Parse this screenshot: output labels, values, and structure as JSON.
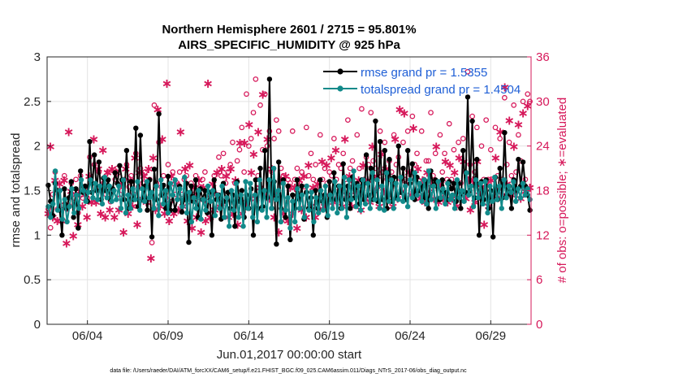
{
  "chart_data": {
    "type": "line",
    "title": "Northern Hemisphere 2601 / 2715 = 95.801%",
    "subtitle": "AIRS_SPECIFIC_HUMIDITY @ 925 hPa",
    "xlabel": "Jun.01,2017 00:00:00 start",
    "ylabel": "rmse and totalspread",
    "ylabel_right": "# of obs: o=possible; ∗=evaluated",
    "ylim": [
      0,
      3
    ],
    "ylim_right": [
      0,
      36
    ],
    "xlim": [
      1.5,
      31.5
    ],
    "yticks": [
      "0",
      "0.5",
      "1",
      "1.5",
      "2",
      "2.5",
      "3"
    ],
    "yticks_right": [
      "0",
      "6",
      "12",
      "18",
      "24",
      "30",
      "36"
    ],
    "xticks": [
      {
        "pos": 4,
        "label": "06/04"
      },
      {
        "pos": 9,
        "label": "06/09"
      },
      {
        "pos": 14,
        "label": "06/14"
      },
      {
        "pos": 19,
        "label": "06/19"
      },
      {
        "pos": 24,
        "label": "06/24"
      },
      {
        "pos": 29,
        "label": "06/29"
      }
    ],
    "grid": true,
    "legend_position": "top-right",
    "colors": {
      "rmse": "#000000",
      "spread": "#118a8a",
      "obs": "#d6185a",
      "legend_text": "#1f5fd6"
    },
    "series": [
      {
        "name": "rmse grand pr = 1.5355",
        "color": "#000000",
        "values": [
          1.56,
          1.38,
          1.22,
          1.58,
          1.5,
          1.28,
          1.0,
          1.52,
          1.3,
          1.42,
          1.6,
          1.2,
          1.52,
          1.08,
          1.72,
          1.48,
          1.55,
          1.38,
          2.05,
          1.48,
          1.9,
          1.5,
          1.82,
          1.4,
          1.64,
          1.5,
          1.62,
          1.4,
          1.52,
          1.7,
          1.58,
          1.78,
          1.62,
          1.4,
          1.95,
          1.3,
          1.6,
          1.4,
          2.2,
          1.32,
          2.12,
          1.4,
          1.55,
          1.28,
          1.62,
          0.98,
          1.74,
          1.4,
          2.36,
          1.45,
          1.56,
          1.3,
          1.66,
          1.28,
          1.45,
          1.28,
          1.4,
          1.55,
          1.26,
          1.4,
          1.58,
          0.92,
          1.55,
          1.38,
          1.62,
          1.2,
          1.52,
          1.4,
          1.5,
          1.25,
          1.48,
          1.0,
          1.62,
          1.4,
          1.45,
          1.18,
          1.58,
          1.38,
          1.48,
          1.3,
          1.45,
          1.1,
          1.6,
          1.38,
          1.5,
          1.2,
          1.45,
          1.3,
          1.52,
          1.0,
          1.62,
          1.3,
          1.75,
          1.32,
          1.95,
          1.42,
          2.75,
          1.3,
          1.6,
          0.9,
          1.82,
          1.3,
          1.62,
          1.2,
          1.55,
          0.95,
          1.45,
          1.3,
          1.62,
          1.4,
          1.55,
          1.18,
          1.48,
          1.3,
          1.42,
          1.0,
          1.5,
          1.3,
          1.62,
          1.38,
          1.45,
          1.2,
          1.6,
          1.4,
          1.7,
          1.4,
          1.55,
          1.3,
          1.8,
          1.4,
          1.55,
          1.3,
          1.65,
          1.42,
          1.58,
          1.35,
          1.62,
          1.4,
          1.9,
          1.45,
          1.75,
          1.4,
          2.28,
          1.38,
          2.05,
          1.4,
          1.95,
          1.3,
          1.85,
          1.38,
          1.65,
          1.42,
          2.0,
          1.48,
          1.75,
          1.4,
          1.95,
          1.58,
          1.8,
          1.4,
          1.65,
          1.5,
          1.55,
          1.42,
          1.6,
          1.3,
          1.72,
          1.55,
          1.62,
          1.4,
          1.4,
          1.62,
          1.48,
          1.4,
          1.6,
          1.52,
          1.58,
          1.38,
          1.58,
          1.3,
          1.95,
          1.48,
          2.55,
          1.5,
          2.28,
          1.42,
          1.85,
          1.0,
          1.6,
          1.4,
          1.62,
          1.3,
          1.5,
          0.98,
          1.65,
          1.4,
          1.75,
          1.42,
          2.15,
          1.45,
          1.55,
          1.3,
          1.62,
          1.5,
          1.85,
          1.55,
          1.82,
          1.55,
          1.45,
          1.28
        ]
      },
      {
        "name": "totalspread grand pr = 1.4504",
        "color": "#118a8a",
        "values": [
          1.32,
          1.2,
          1.35,
          1.72,
          1.28,
          1.5,
          1.18,
          1.4,
          1.15,
          1.32,
          1.52,
          1.25,
          1.45,
          1.3,
          1.62,
          1.5,
          1.38,
          1.48,
          1.62,
          1.42,
          1.58,
          1.4,
          1.55,
          1.35,
          1.65,
          1.42,
          1.55,
          1.38,
          1.5,
          1.4,
          1.55,
          1.3,
          1.62,
          1.25,
          1.45,
          1.3,
          1.52,
          1.4,
          1.6,
          1.28,
          1.52,
          1.38,
          1.6,
          1.42,
          1.48,
          1.3,
          1.55,
          1.22,
          1.62,
          1.35,
          1.5,
          1.25,
          1.58,
          1.45,
          1.62,
          1.4,
          1.52,
          1.32,
          1.65,
          1.25,
          1.48,
          1.15,
          1.42,
          1.3,
          1.5,
          1.18,
          1.4,
          1.28,
          1.55,
          1.38,
          1.5,
          1.22,
          1.45,
          1.3,
          1.55,
          1.2,
          1.42,
          1.1,
          1.5,
          1.28,
          1.58,
          1.2,
          1.45,
          1.1,
          1.6,
          1.3,
          1.58,
          1.2,
          1.45,
          1.15,
          1.62,
          1.28,
          1.5,
          1.2,
          1.62,
          1.3,
          1.75,
          1.4,
          1.5,
          1.15,
          1.58,
          1.28,
          1.42,
          1.08,
          1.38,
          1.15,
          1.52,
          1.3,
          1.45,
          1.2,
          1.55,
          1.28,
          1.48,
          1.15,
          1.42,
          1.25,
          1.5,
          1.28,
          1.55,
          1.22,
          1.45,
          1.3,
          1.6,
          1.25,
          1.55,
          1.3,
          1.65,
          1.2,
          1.62,
          1.4,
          1.72,
          1.32,
          1.55,
          1.28,
          1.62,
          1.35,
          1.58,
          1.3,
          1.7,
          1.4,
          1.62,
          1.3,
          1.55,
          1.28,
          1.7,
          1.38,
          1.62,
          1.3,
          1.58,
          1.4,
          1.65,
          1.38,
          1.55,
          1.32,
          1.62,
          1.42,
          1.7,
          1.45,
          1.58,
          1.38,
          1.62,
          1.35,
          1.72,
          1.4,
          1.55,
          1.3,
          1.6,
          1.42,
          1.52,
          1.35,
          1.58,
          1.4,
          1.45,
          1.3,
          1.62,
          1.42,
          1.5,
          1.38,
          1.7,
          1.45,
          1.55,
          1.32,
          1.62,
          1.42,
          1.58,
          1.35,
          1.6,
          1.25,
          1.55,
          1.38,
          1.65,
          1.4,
          1.55,
          1.3,
          1.62,
          1.42,
          1.55,
          1.48,
          1.6,
          1.38,
          1.52,
          1.42,
          1.58,
          1.45,
          1.52,
          1.4
        ]
      },
      {
        "name": "obs possible",
        "color": "#d6185a",
        "marker": "o",
        "axis": "right",
        "values": [
          15.5,
          13.0,
          17.5,
          20.5,
          15.5,
          18.0,
          16.0,
          20.0,
          15.5,
          16.0,
          19.0,
          17.0,
          19.5,
          15.0,
          20.0,
          17.0,
          18.5,
          17.0,
          22.5,
          19.0,
          21.5,
          18.0,
          20.5,
          18.0,
          19.0,
          17.5,
          20.5,
          16.5,
          18.0,
          19.5,
          21.0,
          17.0,
          18.0,
          19.5,
          21.5,
          18.5,
          20.0,
          17.5,
          23.0,
          18.5,
          21.0,
          19.0,
          20.5,
          18.5,
          19.5,
          11.0,
          29.5,
          19.0,
          24.5,
          18.5,
          20.0,
          17.0,
          21.5,
          16.5,
          20.5,
          17.5,
          19.0,
          20.5,
          17.5,
          19.5,
          20.0,
          16.5,
          19.0,
          17.5,
          20.0,
          16.5,
          18.5,
          19.5,
          20.5,
          16.5,
          17.5,
          15.0,
          20.0,
          17.5,
          22.5,
          20.0,
          23.0,
          19.0,
          20.5,
          21.5,
          24.5,
          19.0,
          22.0,
          23.5,
          26.5,
          20.5,
          31.0,
          24.0,
          25.0,
          28.5,
          33.0,
          20.0,
          29.5,
          23.5,
          31.0,
          24.0,
          26.0,
          20.5,
          25.0,
          27.5,
          26.0,
          21.0,
          20.0,
          14.0,
          19.5,
          19.0,
          26.0,
          19.5,
          21.0,
          19.0,
          20.5,
          18.5,
          26.5,
          20.0,
          23.0,
          19.5,
          21.5,
          18.5,
          25.5,
          19.5,
          21.0,
          19.0,
          20.5,
          20.0,
          25.0,
          19.5,
          21.5,
          21.0,
          23.0,
          19.5,
          27.5,
          21.0,
          22.0,
          18.5,
          25.5,
          21.0,
          29.0,
          19.5,
          22.5,
          21.5,
          28.5,
          22.0,
          21.0,
          18.5,
          26.0,
          20.5,
          24.5,
          19.5,
          22.0,
          20.5,
          25.5,
          21.5,
          22.5,
          19.5,
          24.5,
          19.5,
          26.0,
          20.5,
          28.0,
          21.5,
          23.0,
          17.5,
          26.0,
          19.5,
          22.0,
          22.0,
          28.5,
          20.0,
          23.0,
          18.5,
          25.5,
          20.5,
          23.0,
          19.5,
          27.0,
          19.5,
          23.5,
          18.5,
          24.5,
          19.0,
          25.0,
          20.5,
          34.0,
          21.5,
          28.0,
          20.5,
          26.5,
          17.0,
          24.0,
          19.5,
          27.5,
          19.5,
          23.5,
          17.5,
          26.5,
          20.0,
          25.0,
          19.5,
          30.5,
          21.5,
          24.5,
          20.0,
          29.5,
          20.5,
          25.5,
          22.0,
          30.0,
          19.5,
          31.0,
          30.0
        ]
      },
      {
        "name": "obs evaluated",
        "color": "#d6185a",
        "marker": "*",
        "axis": "right",
        "values": [
          15.0,
          24.0,
          14.5,
          19.5,
          14.0,
          19.0,
          14.0,
          19.5,
          11.0,
          26.0,
          18.0,
          12.0,
          17.5,
          13.5,
          18.0,
          16.0,
          17.5,
          14.5,
          20.0,
          16.5,
          25.0,
          16.5,
          21.0,
          15.0,
          23.5,
          14.5,
          20.5,
          15.5,
          21.0,
          14.5,
          20.5,
          15.5,
          19.0,
          12.5,
          21.0,
          15.0,
          19.5,
          16.0,
          22.5,
          13.5,
          20.5,
          17.0,
          20.0,
          16.5,
          21.0,
          9.0,
          22.5,
          15.5,
          29.0,
          16.0,
          25.0,
          15.0,
          32.5,
          14.0,
          20.0,
          15.0,
          19.0,
          15.5,
          26.0,
          16.0,
          21.0,
          14.0,
          21.5,
          13.0,
          18.5,
          14.5,
          19.5,
          12.5,
          18.5,
          14.0,
          32.5,
          14.5,
          19.0,
          15.5,
          20.5,
          16.0,
          21.0,
          16.5,
          20.0,
          14.5,
          21.0,
          15.0,
          19.5,
          13.5,
          24.5,
          15.0,
          24.5,
          16.5,
          27.0,
          20.5,
          23.0,
          17.0,
          26.0,
          18.5,
          31.0,
          17.5,
          25.0,
          17.0,
          21.0,
          14.5,
          17.5,
          12.5,
          19.5,
          15.0,
          20.0,
          14.0,
          18.5,
          15.0,
          18.5,
          13.0,
          19.5,
          15.5,
          20.0,
          14.5,
          21.5,
          16.0,
          18.5,
          14.5,
          19.0,
          15.5,
          22.0,
          16.0,
          21.5,
          17.5,
          22.5,
          16.5,
          23.5,
          17.0,
          18.0,
          16.0,
          25.0,
          17.5,
          20.0,
          16.0,
          19.0,
          17.5,
          19.5,
          15.5,
          21.5,
          17.0,
          19.5,
          16.5,
          24.0,
          18.0,
          20.0,
          16.0,
          23.0,
          18.0,
          21.0,
          17.5,
          19.5,
          16.0,
          25.0,
          17.0,
          29.0,
          18.0,
          28.5,
          19.0,
          20.5,
          17.5,
          26.5,
          18.0,
          21.0,
          17.0,
          19.5,
          16.5,
          20.5,
          18.0,
          19.0,
          17.0,
          24.0,
          16.5,
          19.0,
          17.0,
          22.0,
          16.5,
          21.5,
          17.0,
          20.5,
          16.0,
          22.5,
          18.0,
          22.0,
          17.0,
          19.5,
          15.5,
          19.5,
          16.5,
          22.0,
          17.5,
          18.5,
          13.5,
          19.0,
          16.0,
          19.5,
          17.0,
          22.5,
          18.0,
          26.0,
          17.5,
          32.0,
          19.0,
          27.5,
          17.5,
          24.0,
          18.0,
          27.0,
          17.0,
          28.5,
          18.0,
          29.5,
          18.5
        ]
      }
    ]
  },
  "legend": {
    "rmse": "rmse grand pr = 1.5355",
    "spread": "totalspread grand pr = 1.4504"
  },
  "footer": "data file: /Users/raeder/DAI/ATM_forcXX/CAM6_setup/f.e21.FHIST_BGC.f09_025.CAM6assim.011/Diags_NTrS_2017-06/obs_diag_output.nc"
}
